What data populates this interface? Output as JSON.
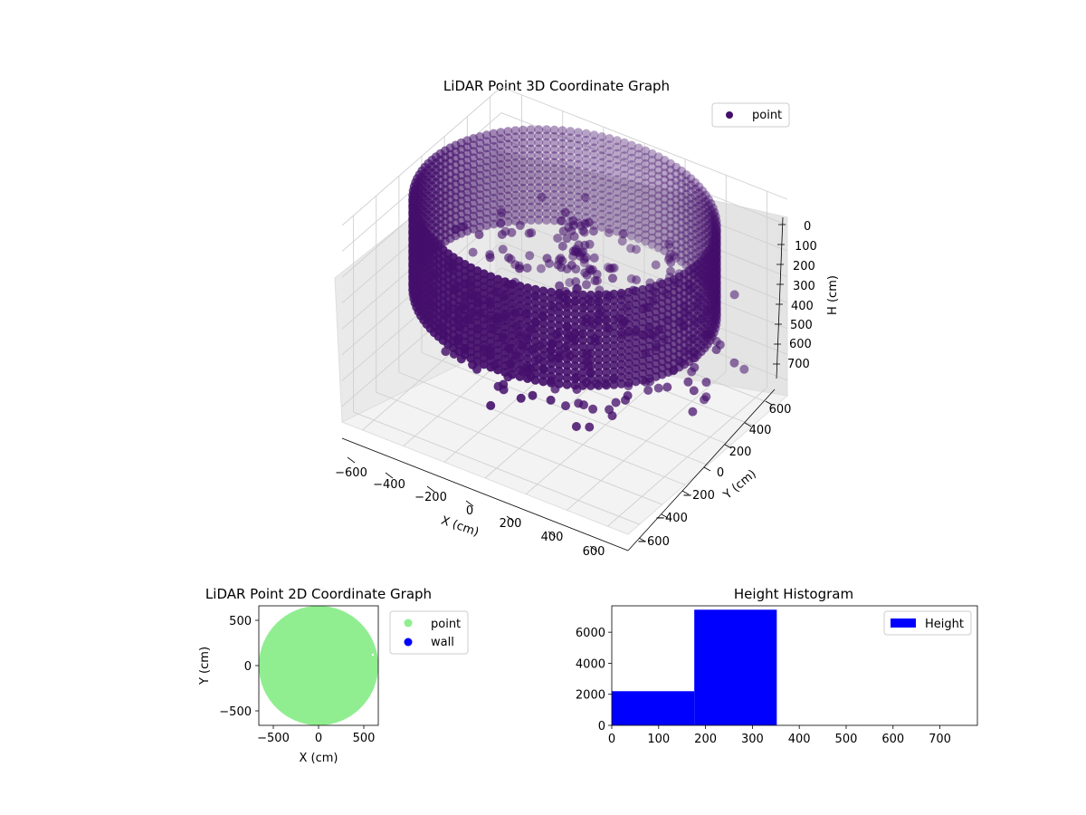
{
  "chart_data": [
    {
      "type": "scatter",
      "projection": "3d",
      "title": "LiDAR Point 3D Coordinate Graph",
      "xlabel": "X (cm)",
      "ylabel": "Y (cm)",
      "zlabel": "H (cm)",
      "xlim": [
        -700,
        700
      ],
      "ylim": [
        -700,
        700
      ],
      "zlim": [
        760,
        0
      ],
      "z_inverted": true,
      "xticks": [
        "−600",
        "−400",
        "−200",
        "0",
        "200",
        "400",
        "600"
      ],
      "yticks": [
        "−600",
        "−400",
        "−200",
        "0",
        "200",
        "400",
        "600"
      ],
      "zticks": [
        "0",
        "100",
        "200",
        "300",
        "400",
        "500",
        "600",
        "700"
      ],
      "grid": true,
      "legend": {
        "placement": "top-right",
        "entries": [
          "point"
        ]
      },
      "series": [
        {
          "name": "point",
          "color": "#440f6b",
          "description_values": {
            "ring_radius_cm": 650,
            "ring_height_range_cm": [
              0,
              350
            ],
            "interior_height_range_cm": [
              200,
              560
            ],
            "outlier_x_range_cm": [
              600,
              750
            ]
          }
        }
      ]
    },
    {
      "type": "scatter",
      "title": "LiDAR Point 2D Coordinate Graph",
      "xlabel": "X (cm)",
      "ylabel": "Y (cm)",
      "xlim": [
        -650,
        650
      ],
      "ylim": [
        -650,
        650
      ],
      "xticks": [
        "−500",
        "0",
        "500"
      ],
      "yticks": [
        "−500",
        "0",
        "500"
      ],
      "legend": {
        "placement": "outside-right",
        "entries": [
          "point",
          "wall"
        ]
      },
      "series": [
        {
          "name": "point",
          "color": "#90ee90",
          "shape": "filled disc",
          "center": [
            0,
            0
          ],
          "radius_cm": 650
        },
        {
          "name": "wall",
          "color": "#0000ff",
          "points": []
        }
      ]
    },
    {
      "type": "bar",
      "subtype": "histogram",
      "title": "Height Histogram",
      "xlim": [
        0,
        780
      ],
      "ylim": [
        0,
        7700
      ],
      "xticks": [
        "0",
        "100",
        "200",
        "300",
        "400",
        "500",
        "600",
        "700"
      ],
      "yticks": [
        "0",
        "2000",
        "4000",
        "6000"
      ],
      "legend": {
        "placement": "top-right",
        "entries": [
          "Height"
        ]
      },
      "series": [
        {
          "name": "Height",
          "color": "#0000ff",
          "bins": [
            {
              "start": 0,
              "end": 176,
              "count": 2200
            },
            {
              "start": 176,
              "end": 352,
              "count": 7450
            },
            {
              "start": 352,
              "end": 528,
              "count": 0
            },
            {
              "start": 528,
              "end": 704,
              "count": 0
            }
          ]
        }
      ]
    }
  ]
}
